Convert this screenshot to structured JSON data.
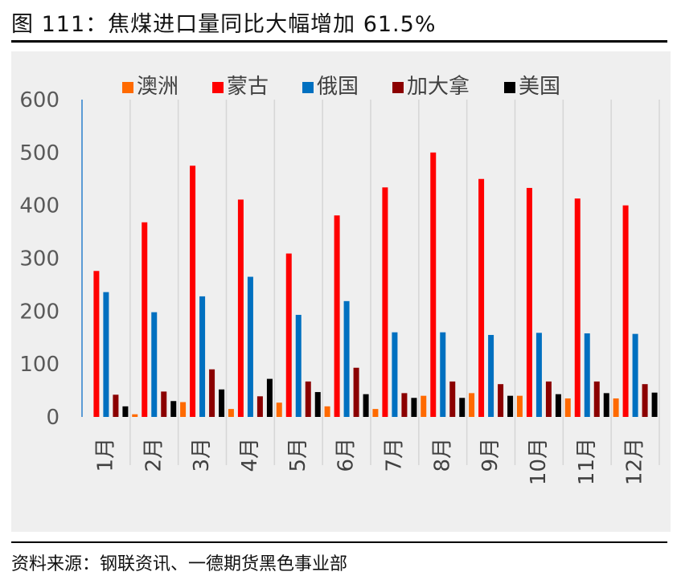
{
  "figure": {
    "title": "图 111：焦煤进口量同比大幅增加 61.5%",
    "source": "资料来源：钢联资讯、一德期货黑色事业部"
  },
  "chart_data": {
    "type": "bar",
    "title": "",
    "xlabel": "",
    "ylabel": "",
    "ylim": [
      0,
      600
    ],
    "yticks": [
      0,
      100,
      200,
      300,
      400,
      500,
      600
    ],
    "grid": "vertical",
    "legend": "top",
    "categories": [
      "1月",
      "2月",
      "3月",
      "4月",
      "5月",
      "6月",
      "7月",
      "8月",
      "9月",
      "10月",
      "11月",
      "12月"
    ],
    "series": [
      {
        "name": "澳洲",
        "color": "#ff6a00",
        "values": [
          0,
          5,
          28,
          15,
          27,
          20,
          15,
          40,
          45,
          40,
          35,
          35
        ]
      },
      {
        "name": "蒙古",
        "color": "#ff0000",
        "values": [
          276,
          368,
          475,
          411,
          309,
          381,
          434,
          500,
          450,
          433,
          413,
          400
        ]
      },
      {
        "name": "俄国",
        "color": "#0070c0",
        "values": [
          236,
          198,
          228,
          265,
          193,
          219,
          160,
          160,
          155,
          159,
          158,
          157
        ]
      },
      {
        "name": "加大拿",
        "color": "#8b0000",
        "values": [
          42,
          48,
          90,
          39,
          67,
          93,
          45,
          67,
          62,
          67,
          67,
          62
        ]
      },
      {
        "name": "美国",
        "color": "#000000",
        "values": [
          20,
          30,
          52,
          72,
          47,
          43,
          36,
          36,
          40,
          43,
          45,
          46
        ]
      }
    ]
  }
}
